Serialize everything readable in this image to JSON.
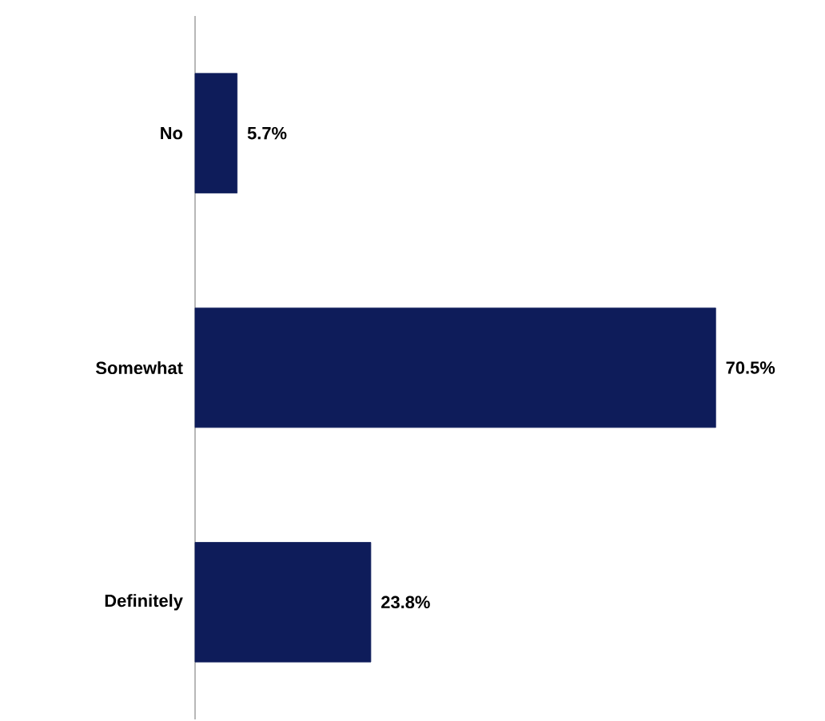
{
  "chart_data": {
    "type": "bar",
    "orientation": "horizontal",
    "categories": [
      "No",
      "Somewhat",
      "Definitely"
    ],
    "values": [
      5.7,
      70.5,
      23.8
    ],
    "value_labels": [
      "5.7%",
      "70.5%",
      "23.8%"
    ],
    "color": "#0e1c5a",
    "grid": false
  }
}
